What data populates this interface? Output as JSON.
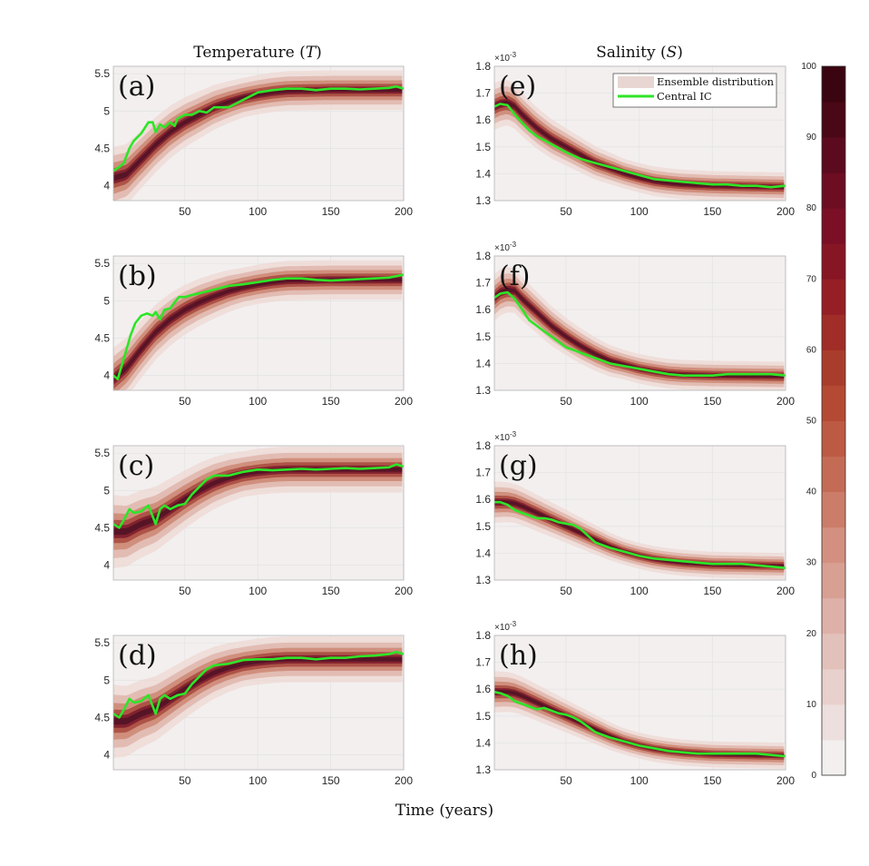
{
  "chart_data": {
    "type": "line",
    "title_temperature": "Temperature",
    "title_temperature_symbol": "T",
    "title_salinity": "Salinity",
    "title_salinity_symbol": "S",
    "xlabel": "Time (years)",
    "x_range": [
      1,
      200
    ],
    "x_ticks": [
      "50",
      "100",
      "150",
      "200"
    ],
    "legend": {
      "position": "top-right",
      "entries": [
        "Ensemble distribution",
        "Central IC"
      ]
    },
    "colorbar": {
      "range": [
        0,
        100
      ],
      "ticks": [
        "0",
        "10",
        "20",
        "30",
        "40",
        "50",
        "60",
        "70",
        "80",
        "90",
        "100"
      ],
      "colors": [
        "#f3efef",
        "#eddfdd",
        "#e8d0cc",
        "#e3c1bb",
        "#deb1a8",
        "#d8a093",
        "#d39080",
        "#cc7d69",
        "#c46b55",
        "#bd5a43",
        "#b44a33",
        "#a93d2b",
        "#a02d27",
        "#951f25",
        "#871624",
        "#7a0f25",
        "#6c0d22",
        "#5c0a1d",
        "#4a0716",
        "#3a0510"
      ]
    },
    "colors": {
      "central_ic": "#2ee528",
      "ensemble_core": "#521326",
      "background": "#f3efef",
      "grid": "#e4e4e4"
    },
    "panels": [
      {
        "label": "(a)",
        "variable": "Temperature",
        "y_range": [
          3.8,
          5.6
        ],
        "y_ticks": [
          "4",
          "4.5",
          "5",
          "5.5"
        ],
        "y_tick_values": [
          4,
          4.5,
          5,
          5.5
        ],
        "central_ic": {
          "x": [
            1,
            5,
            8,
            12,
            15,
            20,
            25,
            28,
            30,
            33,
            36,
            40,
            43,
            45,
            50,
            55,
            60,
            65,
            70,
            80,
            90,
            100,
            110,
            120,
            130,
            140,
            150,
            160,
            170,
            180,
            190,
            195,
            200
          ],
          "y": [
            4.2,
            4.25,
            4.3,
            4.5,
            4.6,
            4.7,
            4.85,
            4.85,
            4.72,
            4.82,
            4.78,
            4.85,
            4.8,
            4.9,
            4.95,
            4.95,
            5.0,
            4.98,
            5.05,
            5.05,
            5.15,
            5.25,
            5.28,
            5.3,
            5.3,
            5.28,
            5.3,
            5.3,
            5.29,
            5.3,
            5.31,
            5.33,
            5.3
          ]
        },
        "ensemble_mean": {
          "x": [
            1,
            10,
            20,
            30,
            40,
            50,
            60,
            70,
            80,
            90,
            100,
            110,
            120,
            150,
            200
          ],
          "y": [
            4.1,
            4.15,
            4.35,
            4.55,
            4.72,
            4.85,
            4.95,
            5.05,
            5.12,
            5.18,
            5.22,
            5.25,
            5.27,
            5.28,
            5.28
          ]
        },
        "ensemble_halfwidth": 0.12
      },
      {
        "label": "(b)",
        "variable": "Temperature",
        "y_range": [
          3.8,
          5.6
        ],
        "y_ticks": [
          "4",
          "4.5",
          "5",
          "5.5"
        ],
        "y_tick_values": [
          4,
          4.5,
          5,
          5.5
        ],
        "central_ic": {
          "x": [
            1,
            4,
            7,
            10,
            13,
            16,
            20,
            24,
            28,
            30,
            33,
            36,
            40,
            43,
            46,
            50,
            55,
            60,
            70,
            80,
            90,
            100,
            110,
            120,
            130,
            140,
            150,
            160,
            170,
            180,
            190,
            195,
            200
          ],
          "y": [
            4.0,
            3.95,
            4.15,
            4.35,
            4.55,
            4.7,
            4.8,
            4.83,
            4.8,
            4.85,
            4.75,
            4.88,
            4.9,
            4.98,
            5.05,
            5.05,
            5.08,
            5.1,
            5.15,
            5.2,
            5.22,
            5.25,
            5.28,
            5.3,
            5.3,
            5.28,
            5.27,
            5.28,
            5.29,
            5.3,
            5.31,
            5.33,
            5.35
          ]
        },
        "ensemble_mean": {
          "x": [
            1,
            10,
            20,
            30,
            40,
            50,
            60,
            70,
            80,
            90,
            100,
            110,
            120,
            150,
            200
          ],
          "y": [
            3.95,
            4.1,
            4.35,
            4.58,
            4.75,
            4.88,
            4.98,
            5.06,
            5.13,
            5.18,
            5.22,
            5.25,
            5.27,
            5.28,
            5.28
          ]
        },
        "ensemble_halfwidth": 0.12
      },
      {
        "label": "(c)",
        "variable": "Temperature",
        "y_range": [
          3.8,
          5.6
        ],
        "y_ticks": [
          "4",
          "4.5",
          "5",
          "5.5"
        ],
        "y_tick_values": [
          4,
          4.5,
          5,
          5.5
        ],
        "central_ic": {
          "x": [
            1,
            5,
            8,
            12,
            15,
            20,
            25,
            30,
            33,
            36,
            40,
            45,
            50,
            55,
            60,
            65,
            70,
            80,
            90,
            100,
            110,
            120,
            130,
            140,
            150,
            160,
            170,
            180,
            190,
            195,
            200
          ],
          "y": [
            4.55,
            4.5,
            4.6,
            4.75,
            4.7,
            4.72,
            4.8,
            4.55,
            4.75,
            4.8,
            4.75,
            4.8,
            4.82,
            4.95,
            5.05,
            5.15,
            5.2,
            5.2,
            5.25,
            5.28,
            5.27,
            5.28,
            5.29,
            5.28,
            5.29,
            5.3,
            5.29,
            5.3,
            5.31,
            5.35,
            5.32
          ]
        },
        "ensemble_mean": {
          "x": [
            1,
            10,
            20,
            30,
            40,
            50,
            60,
            70,
            80,
            90,
            100,
            110,
            120,
            150,
            200
          ],
          "y": [
            4.45,
            4.45,
            4.55,
            4.62,
            4.75,
            4.88,
            5.0,
            5.1,
            5.17,
            5.22,
            5.25,
            5.27,
            5.28,
            5.28,
            5.28
          ]
        },
        "ensemble_halfwidth": 0.14
      },
      {
        "label": "(d)",
        "variable": "Temperature",
        "y_range": [
          3.8,
          5.6
        ],
        "y_ticks": [
          "4",
          "4.5",
          "5",
          "5.5"
        ],
        "y_tick_values": [
          4,
          4.5,
          5,
          5.5
        ],
        "central_ic": {
          "x": [
            1,
            5,
            8,
            12,
            15,
            20,
            25,
            30,
            33,
            36,
            40,
            45,
            50,
            55,
            60,
            65,
            70,
            80,
            90,
            100,
            110,
            120,
            130,
            140,
            150,
            160,
            170,
            180,
            190,
            195,
            200
          ],
          "y": [
            4.55,
            4.5,
            4.6,
            4.75,
            4.7,
            4.72,
            4.8,
            4.55,
            4.75,
            4.8,
            4.75,
            4.8,
            4.82,
            4.95,
            5.05,
            5.15,
            5.2,
            5.22,
            5.27,
            5.28,
            5.28,
            5.3,
            5.3,
            5.28,
            5.3,
            5.3,
            5.32,
            5.33,
            5.35,
            5.38,
            5.35
          ]
        },
        "ensemble_mean": {
          "x": [
            1,
            10,
            20,
            30,
            40,
            50,
            60,
            70,
            80,
            90,
            100,
            110,
            120,
            150,
            200
          ],
          "y": [
            4.45,
            4.45,
            4.55,
            4.62,
            4.75,
            4.88,
            5.0,
            5.1,
            5.17,
            5.22,
            5.25,
            5.27,
            5.28,
            5.28,
            5.28
          ]
        },
        "ensemble_halfwidth": 0.14
      },
      {
        "label": "(e)",
        "variable": "Salinity",
        "y_range": [
          1.3,
          1.8
        ],
        "y_ticks": [
          "1.3",
          "1.4",
          "1.5",
          "1.6",
          "1.7",
          "1.8"
        ],
        "y_tick_values": [
          1.3,
          1.4,
          1.5,
          1.6,
          1.7,
          1.8
        ],
        "exponent": "×10",
        "exponent_power": "-3",
        "central_ic": {
          "x": [
            1,
            5,
            10,
            15,
            20,
            25,
            30,
            40,
            50,
            60,
            70,
            80,
            90,
            100,
            110,
            120,
            130,
            140,
            150,
            160,
            170,
            180,
            190,
            200
          ],
          "y": [
            1.65,
            1.66,
            1.655,
            1.62,
            1.59,
            1.56,
            1.54,
            1.51,
            1.48,
            1.455,
            1.44,
            1.425,
            1.41,
            1.395,
            1.38,
            1.375,
            1.37,
            1.365,
            1.36,
            1.36,
            1.355,
            1.355,
            1.35,
            1.355
          ]
        },
        "ensemble_mean": {
          "x": [
            1,
            5,
            10,
            15,
            20,
            30,
            40,
            50,
            60,
            70,
            80,
            90,
            100,
            110,
            120,
            130,
            150,
            200
          ],
          "y": [
            1.65,
            1.66,
            1.665,
            1.65,
            1.62,
            1.57,
            1.53,
            1.5,
            1.47,
            1.44,
            1.42,
            1.4,
            1.385,
            1.372,
            1.365,
            1.36,
            1.355,
            1.35
          ]
        },
        "ensemble_halfwidth": 0.025
      },
      {
        "label": "(f)",
        "variable": "Salinity",
        "y_range": [
          1.3,
          1.8
        ],
        "y_ticks": [
          "1.3",
          "1.4",
          "1.5",
          "1.6",
          "1.7",
          "1.8"
        ],
        "y_tick_values": [
          1.3,
          1.4,
          1.5,
          1.6,
          1.7,
          1.8
        ],
        "exponent": "×10",
        "exponent_power": "-3",
        "central_ic": {
          "x": [
            1,
            5,
            10,
            15,
            20,
            25,
            30,
            40,
            50,
            60,
            70,
            80,
            90,
            100,
            110,
            120,
            130,
            140,
            150,
            160,
            170,
            180,
            190,
            200
          ],
          "y": [
            1.645,
            1.66,
            1.665,
            1.64,
            1.6,
            1.56,
            1.54,
            1.5,
            1.46,
            1.44,
            1.42,
            1.4,
            1.39,
            1.38,
            1.37,
            1.36,
            1.355,
            1.355,
            1.355,
            1.36,
            1.36,
            1.36,
            1.36,
            1.355
          ]
        },
        "ensemble_mean": {
          "x": [
            1,
            5,
            10,
            15,
            20,
            30,
            40,
            50,
            60,
            70,
            80,
            90,
            100,
            110,
            120,
            130,
            150,
            200
          ],
          "y": [
            1.645,
            1.665,
            1.675,
            1.67,
            1.64,
            1.59,
            1.54,
            1.5,
            1.465,
            1.435,
            1.41,
            1.395,
            1.38,
            1.37,
            1.362,
            1.358,
            1.355,
            1.352
          ]
        },
        "ensemble_halfwidth": 0.025
      },
      {
        "label": "(g)",
        "variable": "Salinity",
        "y_range": [
          1.3,
          1.8
        ],
        "y_ticks": [
          "1.3",
          "1.4",
          "1.5",
          "1.6",
          "1.7",
          "1.8"
        ],
        "y_tick_values": [
          1.3,
          1.4,
          1.5,
          1.6,
          1.7,
          1.8
        ],
        "exponent": "×10",
        "exponent_power": "-3",
        "central_ic": {
          "x": [
            1,
            5,
            10,
            15,
            20,
            25,
            30,
            35,
            40,
            45,
            50,
            55,
            60,
            65,
            70,
            80,
            90,
            100,
            110,
            120,
            130,
            140,
            150,
            160,
            170,
            180,
            190,
            200
          ],
          "y": [
            1.59,
            1.59,
            1.58,
            1.56,
            1.55,
            1.54,
            1.53,
            1.53,
            1.525,
            1.515,
            1.51,
            1.505,
            1.49,
            1.465,
            1.44,
            1.42,
            1.405,
            1.39,
            1.38,
            1.375,
            1.37,
            1.365,
            1.36,
            1.36,
            1.36,
            1.355,
            1.35,
            1.345
          ]
        },
        "ensemble_mean": {
          "x": [
            1,
            5,
            10,
            15,
            20,
            30,
            40,
            50,
            60,
            70,
            80,
            90,
            100,
            110,
            120,
            130,
            150,
            200
          ],
          "y": [
            1.59,
            1.59,
            1.59,
            1.585,
            1.575,
            1.55,
            1.525,
            1.5,
            1.475,
            1.45,
            1.425,
            1.405,
            1.39,
            1.378,
            1.37,
            1.364,
            1.357,
            1.352
          ]
        },
        "ensemble_halfwidth": 0.022
      },
      {
        "label": "(h)",
        "variable": "Salinity",
        "y_range": [
          1.3,
          1.8
        ],
        "y_ticks": [
          "1.3",
          "1.4",
          "1.5",
          "1.6",
          "1.7",
          "1.8"
        ],
        "y_tick_values": [
          1.3,
          1.4,
          1.5,
          1.6,
          1.7,
          1.8
        ],
        "exponent": "×10",
        "exponent_power": "-3",
        "central_ic": {
          "x": [
            1,
            5,
            10,
            15,
            20,
            25,
            30,
            35,
            40,
            45,
            50,
            55,
            60,
            65,
            70,
            80,
            90,
            100,
            110,
            120,
            130,
            140,
            150,
            160,
            170,
            180,
            190,
            200
          ],
          "y": [
            1.59,
            1.585,
            1.575,
            1.555,
            1.545,
            1.535,
            1.525,
            1.53,
            1.52,
            1.51,
            1.505,
            1.495,
            1.48,
            1.46,
            1.44,
            1.42,
            1.405,
            1.39,
            1.38,
            1.37,
            1.365,
            1.36,
            1.36,
            1.36,
            1.36,
            1.36,
            1.355,
            1.35
          ]
        },
        "ensemble_mean": {
          "x": [
            1,
            5,
            10,
            15,
            20,
            30,
            40,
            50,
            60,
            70,
            80,
            90,
            100,
            110,
            120,
            130,
            150,
            200
          ],
          "y": [
            1.59,
            1.59,
            1.59,
            1.585,
            1.575,
            1.55,
            1.525,
            1.5,
            1.475,
            1.45,
            1.425,
            1.405,
            1.39,
            1.378,
            1.37,
            1.364,
            1.357,
            1.352
          ]
        },
        "ensemble_halfwidth": 0.022
      }
    ]
  }
}
